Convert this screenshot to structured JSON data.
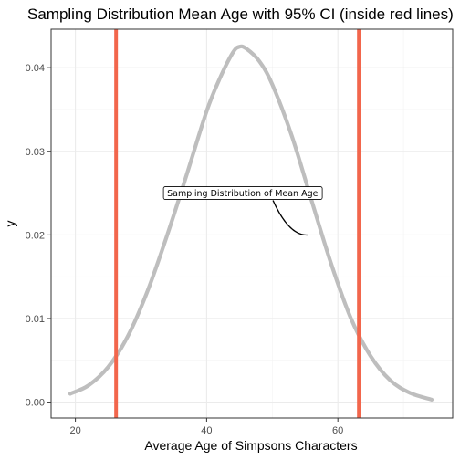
{
  "chart_data": {
    "type": "line",
    "title": "Sampling Distribution Mean Age with 95% CI (inside red lines)",
    "xlabel": "Average Age of Simpsons Characters",
    "ylabel": "y",
    "xlim": [
      16.3,
      77.5
    ],
    "ylim": [
      -0.0019,
      0.0446
    ],
    "x_ticks": [
      20,
      40,
      60
    ],
    "y_ticks": [
      0.0,
      0.01,
      0.02,
      0.03,
      0.04
    ],
    "y_tick_labels": [
      "0.00",
      "0.01",
      "0.02",
      "0.03",
      "0.04"
    ],
    "grid": true,
    "series": [
      {
        "color": "#bebebe",
        "x": [
          19.2,
          22,
          25,
          28,
          31,
          34,
          37,
          40,
          42,
          44,
          45,
          46,
          48,
          50,
          53,
          56,
          59,
          62,
          65,
          68,
          71,
          74.3
        ],
        "values": [
          0.001,
          0.002,
          0.0042,
          0.0079,
          0.0133,
          0.02,
          0.0273,
          0.0348,
          0.0387,
          0.0418,
          0.0425,
          0.0423,
          0.0408,
          0.038,
          0.0318,
          0.0241,
          0.0165,
          0.01,
          0.0055,
          0.0026,
          0.0011,
          0.0003
        ]
      }
    ],
    "vlines": [
      {
        "x": 26.2,
        "color": "#f2664c"
      },
      {
        "x": 63.2,
        "color": "#f2664c"
      }
    ],
    "annotations": [
      {
        "text": "Sampling Distribution of Mean Age",
        "x": 33.7,
        "y": 0.025,
        "arrow_to": [
          55.5,
          0.02
        ]
      }
    ]
  }
}
